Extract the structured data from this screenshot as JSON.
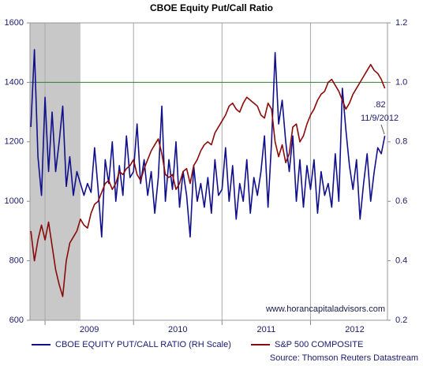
{
  "chart_data": {
    "type": "line",
    "title": "CBOE Equity Put/Call Ratio",
    "x": [
      2008.84,
      2008.88,
      2008.92,
      2008.96,
      2009.0,
      2009.04,
      2009.08,
      2009.12,
      2009.16,
      2009.2,
      2009.24,
      2009.28,
      2009.32,
      2009.36,
      2009.4,
      2009.44,
      2009.48,
      2009.52,
      2009.56,
      2009.6,
      2009.64,
      2009.68,
      2009.72,
      2009.76,
      2009.8,
      2009.84,
      2009.88,
      2009.92,
      2009.96,
      2010.0,
      2010.04,
      2010.08,
      2010.12,
      2010.16,
      2010.2,
      2010.24,
      2010.28,
      2010.32,
      2010.36,
      2010.4,
      2010.44,
      2010.48,
      2010.52,
      2010.56,
      2010.6,
      2010.64,
      2010.68,
      2010.72,
      2010.76,
      2010.8,
      2010.84,
      2010.88,
      2010.92,
      2010.96,
      2011.0,
      2011.04,
      2011.08,
      2011.12,
      2011.16,
      2011.2,
      2011.24,
      2011.28,
      2011.32,
      2011.36,
      2011.4,
      2011.44,
      2011.48,
      2011.52,
      2011.56,
      2011.6,
      2011.64,
      2011.68,
      2011.72,
      2011.76,
      2011.8,
      2011.84,
      2011.88,
      2011.92,
      2011.96,
      2012.0,
      2012.04,
      2012.08,
      2012.12,
      2012.16,
      2012.2,
      2012.24,
      2012.28,
      2012.32,
      2012.36,
      2012.4,
      2012.44,
      2012.48,
      2012.52,
      2012.56,
      2012.6,
      2012.64,
      2012.68,
      2012.72,
      2012.76,
      2012.8,
      2012.84
    ],
    "series": [
      {
        "name": "CBOE EQUITY PUT/CALL RATIO (RH Scale)",
        "color": "#10108c",
        "axis": "y2",
        "values": [
          0.85,
          1.11,
          0.75,
          0.62,
          0.95,
          0.7,
          0.9,
          0.7,
          0.8,
          0.92,
          0.65,
          0.75,
          0.62,
          0.7,
          0.66,
          0.62,
          0.66,
          0.63,
          0.78,
          0.64,
          0.48,
          0.74,
          0.66,
          0.8,
          0.6,
          0.72,
          0.62,
          0.82,
          0.68,
          0.7,
          0.86,
          0.66,
          0.74,
          0.62,
          0.7,
          0.56,
          0.68,
          0.92,
          0.6,
          0.74,
          0.64,
          0.8,
          0.58,
          0.7,
          0.62,
          0.48,
          0.72,
          0.6,
          0.66,
          0.58,
          0.68,
          0.56,
          0.74,
          0.62,
          0.64,
          0.78,
          0.6,
          0.72,
          0.54,
          0.66,
          0.6,
          0.74,
          0.56,
          0.68,
          0.62,
          0.7,
          0.82,
          0.58,
          0.8,
          1.1,
          0.86,
          0.94,
          0.8,
          0.7,
          0.82,
          0.6,
          0.74,
          0.58,
          0.72,
          0.64,
          0.74,
          0.56,
          0.7,
          0.62,
          0.66,
          0.58,
          0.76,
          0.6,
          0.98,
          0.84,
          0.72,
          0.64,
          0.74,
          0.54,
          0.66,
          0.76,
          0.6,
          0.7,
          0.78,
          0.76,
          0.82
        ]
      },
      {
        "name": "S&P 500 COMPOSITE",
        "color": "#8b0a0a",
        "values": [
          900,
          800,
          870,
          920,
          870,
          930,
          850,
          770,
          720,
          680,
          800,
          860,
          880,
          900,
          940,
          920,
          910,
          960,
          990,
          1000,
          1030,
          1060,
          1070,
          1040,
          1060,
          1100,
          1090,
          1110,
          1120,
          1140,
          1090,
          1070,
          1110,
          1140,
          1170,
          1190,
          1210,
          1160,
          1090,
          1080,
          1090,
          1040,
          1060,
          1100,
          1110,
          1060,
          1120,
          1140,
          1170,
          1190,
          1200,
          1190,
          1230,
          1250,
          1270,
          1290,
          1320,
          1330,
          1310,
          1300,
          1330,
          1350,
          1340,
          1330,
          1320,
          1290,
          1280,
          1330,
          1310,
          1200,
          1150,
          1190,
          1130,
          1160,
          1250,
          1260,
          1200,
          1220,
          1260,
          1290,
          1310,
          1340,
          1360,
          1370,
          1400,
          1410,
          1390,
          1370,
          1340,
          1310,
          1330,
          1360,
          1380,
          1400,
          1420,
          1440,
          1460,
          1440,
          1430,
          1410,
          1380
        ]
      }
    ],
    "xlim": [
      2008.83,
      2012.87
    ],
    "xticks": [
      {
        "value": 2009.5,
        "label": "2009"
      },
      {
        "value": 2010.5,
        "label": "2010"
      },
      {
        "value": 2011.5,
        "label": "2011"
      },
      {
        "value": 2012.5,
        "label": "2012"
      }
    ],
    "xgrid": [
      2009,
      2010,
      2011,
      2012
    ],
    "ylim": [
      600,
      1600
    ],
    "yticks": [
      600,
      800,
      1000,
      1200,
      1400,
      1600
    ],
    "y2lim": [
      0.2,
      1.2
    ],
    "y2ticks": [
      0.2,
      0.4,
      0.6,
      {
        "value": 0.8,
        "label": "0.8"
      },
      {
        "value": 1,
        "label": "1.0"
      },
      1.2
    ],
    "reference_line": {
      "value": 1400,
      "color": "#2e7d32"
    },
    "shaded_region": {
      "range": [
        2008.83,
        2009.4
      ],
      "color": "#c8c8c8"
    },
    "annotation": {
      "value_text": ".82",
      "date_text": "11/9/2012"
    },
    "watermark": "www.horancapitaladvisors.com",
    "source": "Source: Thomson Reuters Datastream"
  }
}
